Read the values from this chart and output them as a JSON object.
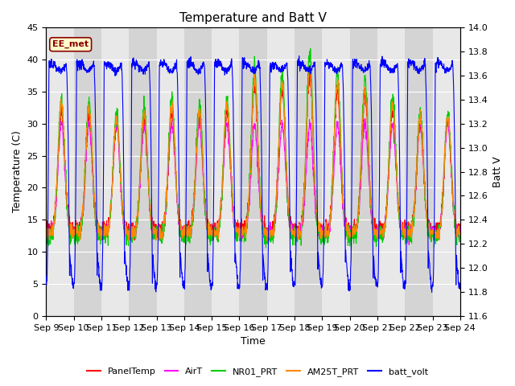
{
  "title": "Temperature and Batt V",
  "xlabel": "Time",
  "ylabel_left": "Temperature (C)",
  "ylabel_right": "Batt V",
  "annotation": "EE_met",
  "xlim": [
    0,
    15
  ],
  "ylim_left": [
    0,
    45
  ],
  "ylim_right": [
    11.6,
    14.0
  ],
  "yticks_left": [
    0,
    5,
    10,
    15,
    20,
    25,
    30,
    35,
    40,
    45
  ],
  "yticks_right": [
    11.6,
    11.8,
    12.0,
    12.2,
    12.4,
    12.6,
    12.8,
    13.0,
    13.2,
    13.4,
    13.6,
    13.8,
    14.0
  ],
  "xtick_labels": [
    "Sep 9",
    "Sep 10",
    "Sep 11",
    "Sep 12",
    "Sep 13",
    "Sep 14",
    "Sep 15",
    "Sep 16",
    "Sep 17",
    "Sep 18",
    "Sep 19",
    "Sep 20",
    "Sep 21",
    "Sep 22",
    "Sep 23",
    "Sep 24"
  ],
  "colors": {
    "PanelTemp": "#ff0000",
    "AirT": "#ff00ff",
    "NR01_PRT": "#00cc00",
    "AM25T_PRT": "#ff8800",
    "batt_volt": "#0000ff"
  },
  "band_light": "#e8e8e8",
  "band_dark": "#d4d4d4",
  "title_fontsize": 11,
  "axis_label_fontsize": 9,
  "tick_fontsize": 8
}
